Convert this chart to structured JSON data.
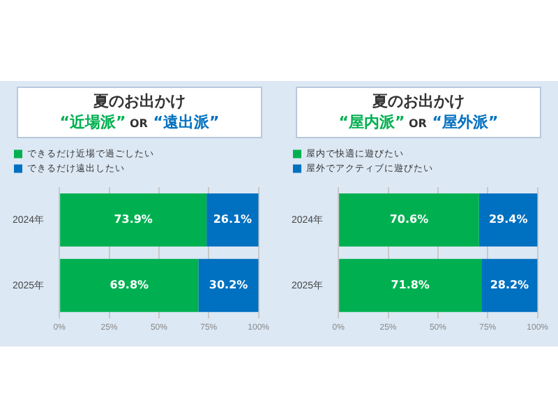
{
  "chart_data": [
    {
      "type": "bar",
      "title": "夏のお出かけ",
      "subtitle": "“近場派” OR “遠出派”",
      "orientation": "horizontal",
      "stacked": true,
      "categories": [
        "2024年",
        "2025年"
      ],
      "series": [
        {
          "name": "できるだけ近場で過ごしたい",
          "color": "#00b050",
          "values": [
            73.9,
            69.8
          ],
          "value_labels": [
            "73.9%",
            "69.8%"
          ]
        },
        {
          "name": "できるだけ遠出したい",
          "color": "#0070c0",
          "values": [
            26.1,
            30.2
          ],
          "value_labels": [
            "26.1%",
            "30.2%"
          ]
        }
      ],
      "xlim": [
        0,
        100
      ],
      "xticks": [
        {
          "value": 0,
          "label": "0%"
        },
        {
          "value": 25,
          "label": "25%"
        },
        {
          "value": 50,
          "label": "50%"
        },
        {
          "value": 75,
          "label": "75%"
        },
        {
          "value": 100,
          "label": "100%"
        }
      ],
      "grid": "x",
      "legend": "top left"
    },
    {
      "type": "bar",
      "title": "夏のお出かけ",
      "subtitle": "“屋内派” OR “屋外派”",
      "orientation": "horizontal",
      "stacked": true,
      "categories": [
        "2024年",
        "2025年"
      ],
      "series": [
        {
          "name": "屋内で快適に遊びたい",
          "color": "#00b050",
          "values": [
            70.6,
            71.8
          ],
          "value_labels": [
            "70.6%",
            "71.8%"
          ]
        },
        {
          "name": "屋外でアクティブに遊びたい",
          "color": "#0070c0",
          "values": [
            29.4,
            28.2
          ],
          "value_labels": [
            "29.4%",
            "28.2%"
          ]
        }
      ],
      "xlim": [
        0,
        100
      ],
      "xticks": [
        {
          "value": 0,
          "label": "0%"
        },
        {
          "value": 25,
          "label": "25%"
        },
        {
          "value": 50,
          "label": "50%"
        },
        {
          "value": 75,
          "label": "75%"
        },
        {
          "value": 100,
          "label": "100%"
        }
      ],
      "grid": "x",
      "legend": "top left"
    }
  ]
}
